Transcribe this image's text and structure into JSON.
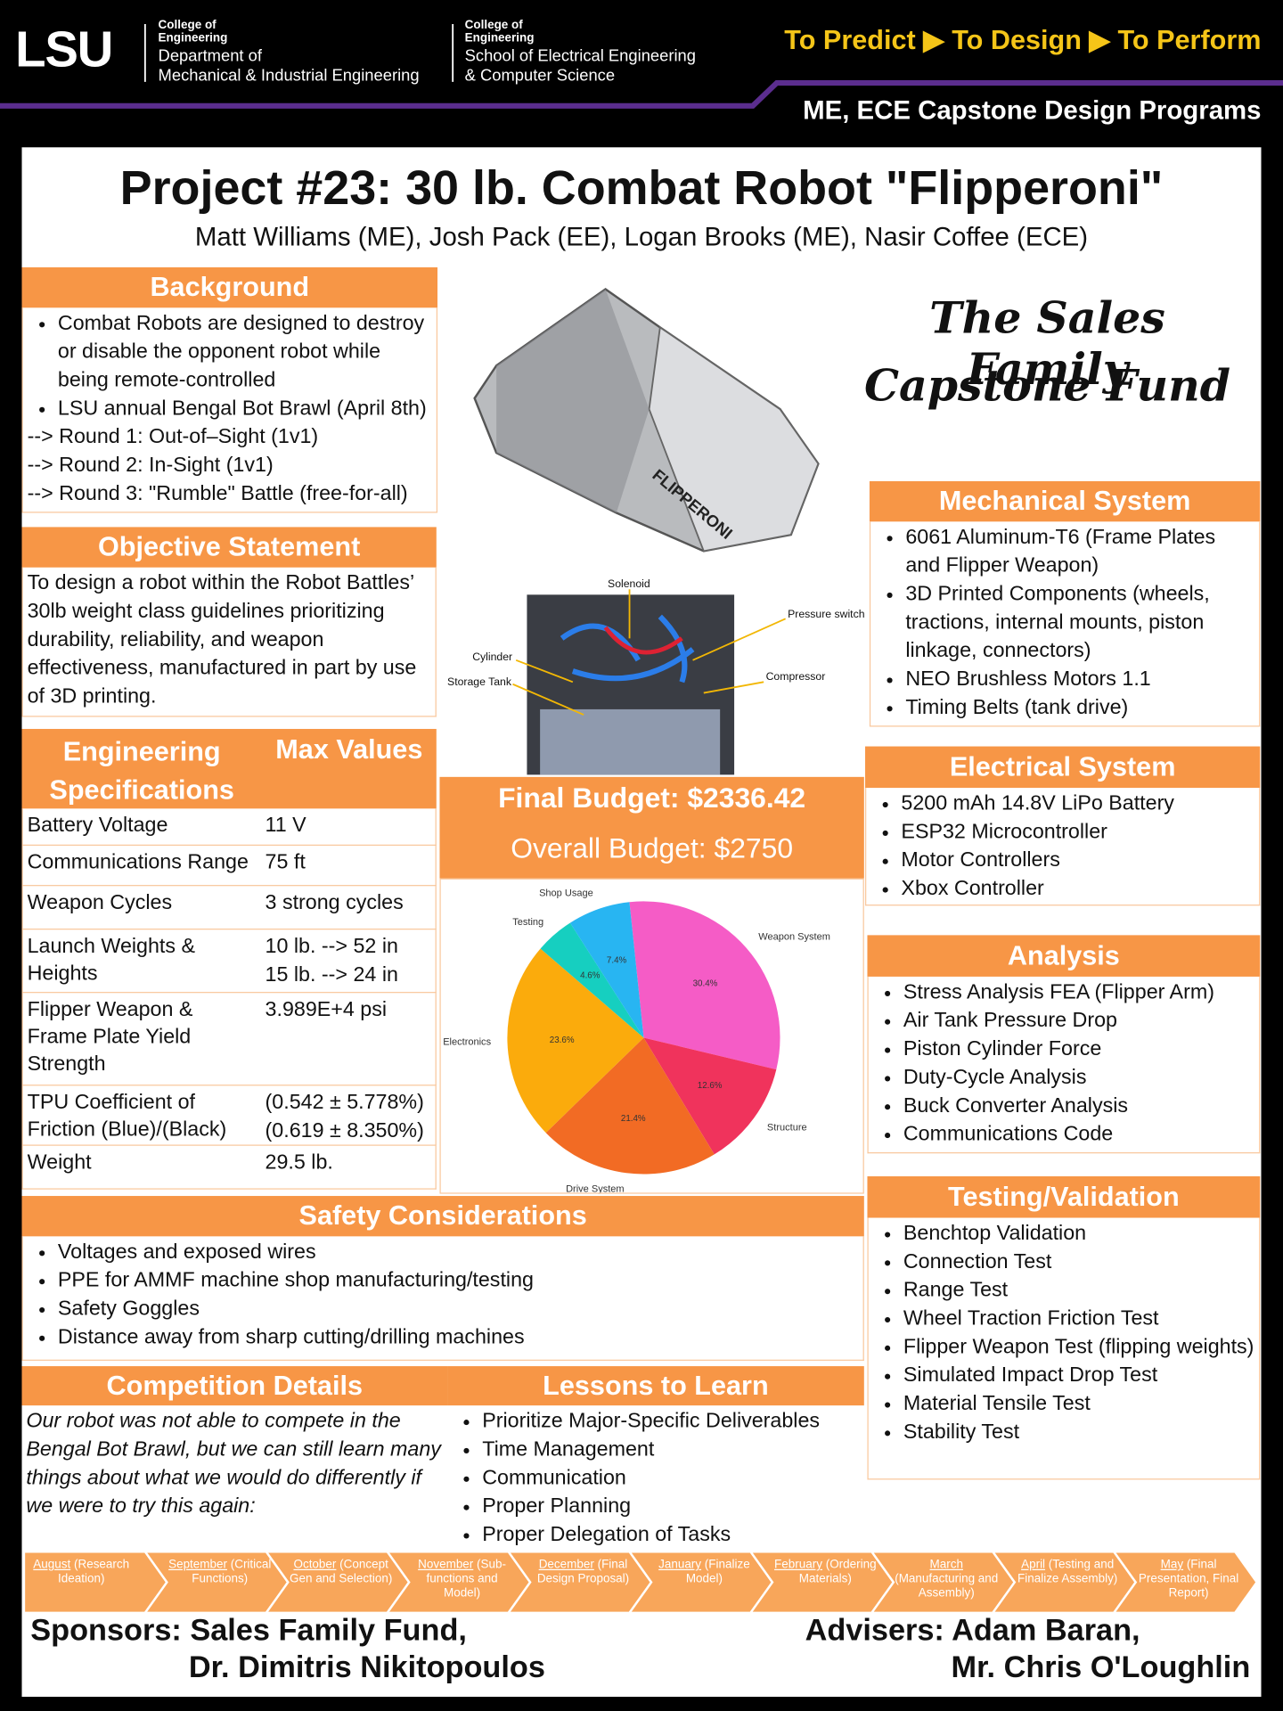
{
  "header": {
    "logo": "LSU",
    "college_me": [
      "College of",
      "Engineering"
    ],
    "dept_me": [
      "Department of",
      "Mechanical & Industrial Engineering"
    ],
    "college_ece": [
      "College of",
      "Engineering"
    ],
    "dept_ece": [
      "School of Electrical Engineering",
      "& Computer Science"
    ],
    "tagline": "To Predict ▶ To Design ▶ To Perform",
    "programs": "ME, ECE Capstone Design Programs"
  },
  "title": "Project #23: 30 lb. Combat Robot \"Flipperoni\"",
  "authors": "Matt Williams (ME), Josh Pack (EE), Logan Brooks (ME), Nasir Coffee (ECE)",
  "background": {
    "heading": "Background",
    "bullets": [
      "Combat Robots are designed to destroy or disable the opponent robot while being remote-controlled",
      "LSU annual Bengal Bot Brawl (April 8th)"
    ],
    "rounds": [
      "--> Round 1: Out-of–Sight (1v1)",
      "--> Round 2: In-Sight (1v1)",
      "--> Round 3: \"Rumble\" Battle (free-for-all)"
    ]
  },
  "objective": {
    "heading": "Objective Statement",
    "text": "To design a robot within the Robot Battles’ 30lb weight class guidelines prioritizing durability, reliability, and weapon effectiveness, manufactured in part by use of 3D printing."
  },
  "specs": {
    "headers": [
      "Engineering Specifications",
      "Max Values"
    ],
    "rows": [
      {
        "label": "Battery Voltage",
        "value": [
          "11 V"
        ]
      },
      {
        "label": "Communications Range",
        "value": [
          "75 ft"
        ]
      },
      {
        "label": "Weapon Cycles",
        "value": [
          "3 strong cycles"
        ]
      },
      {
        "label": "Launch Weights & Heights",
        "value": [
          "10 lb. --> 52 in",
          "15 lb. --> 24 in"
        ]
      },
      {
        "label": "Flipper Weapon & Frame Plate Yield Strength",
        "value": [
          "3.989E+4 psi"
        ]
      },
      {
        "label": "TPU Coefficient of Friction (Blue)/(Black)",
        "value": [
          "(0.542 ± 5.778%)",
          "(0.619 ± 8.350%)"
        ]
      },
      {
        "label": "Weight",
        "value": [
          "29.5 lb."
        ]
      }
    ]
  },
  "safety": {
    "heading": "Safety Considerations",
    "bullets": [
      "Voltages and exposed wires",
      "PPE for AMMF machine shop manufacturing/testing",
      "Safety Goggles",
      "Distance away from sharp cutting/drilling machines"
    ]
  },
  "competition": {
    "heading": "Competition Details",
    "text": "Our robot was not able to compete in the Bengal Bot Brawl, but we can still learn many things about what we would do differently if we were to try this again:"
  },
  "lessons": {
    "heading": "Lessons to Learn",
    "bullets": [
      "Prioritize Major-Specific Deliverables",
      "Time Management",
      "Communication",
      "Proper Planning",
      "Proper Delegation of Tasks"
    ]
  },
  "robot_label": "FLIPPERONI",
  "photo_labels": [
    "Solenoid",
    "Pressure switch",
    "Cylinder",
    "Storage Tank",
    "Compressor"
  ],
  "fund": [
    "The Sales Family",
    "Capstone Fund"
  ],
  "mechanical": {
    "heading": "Mechanical System",
    "bullets": [
      "6061 Aluminum-T6 (Frame Plates and Flipper Weapon)",
      "3D Printed Components (wheels, tractions, internal mounts, piston linkage, connectors)",
      "NEO Brushless Motors 1.1",
      "Timing Belts (tank drive)"
    ]
  },
  "electrical": {
    "heading": "Electrical System",
    "bullets": [
      "5200 mAh 14.8V LiPo Battery",
      "ESP32 Microcontroller",
      "Motor Controllers",
      "Xbox Controller"
    ]
  },
  "analysis": {
    "heading": "Analysis",
    "bullets": [
      "Stress Analysis FEA (Flipper Arm)",
      "Air Tank Pressure Drop",
      "Piston Cylinder Force",
      "Duty-Cycle Analysis",
      "Buck Converter Analysis",
      "Communications Code"
    ]
  },
  "testing": {
    "heading": "Testing/Validation",
    "bullets": [
      "Benchtop Validation",
      "Connection Test",
      "Range Test",
      "Wheel Traction Friction Test",
      "Flipper Weapon Test (flipping weights)",
      "Simulated Impact Drop Test",
      "Material Tensile Test",
      "Stability Test"
    ]
  },
  "budget": {
    "final": "Final Budget: $2336.42",
    "overall": "Overall Budget: $2750"
  },
  "chart_data": {
    "type": "pie",
    "categories": [
      "Weapon System",
      "Structure",
      "Drive System",
      "Electronics",
      "Testing",
      "Shop Usage"
    ],
    "values": [
      30.4,
      12.6,
      21.4,
      23.6,
      4.6,
      7.4
    ],
    "value_labels": [
      "30.4%",
      "12.6%",
      "21.4%",
      "23.6%",
      "4.6%",
      "7.4%"
    ],
    "colors": [
      "#f55cc6",
      "#f0335c",
      "#f26b24",
      "#fbab0c",
      "#16cfc0",
      "#28b5f2"
    ]
  },
  "timeline": [
    {
      "month": "August",
      "detail": "(Research Ideation)"
    },
    {
      "month": "September",
      "detail": "(Critical Functions)"
    },
    {
      "month": "October",
      "detail": "(Concept Gen and Selection)"
    },
    {
      "month": "November",
      "detail": "(Sub-functions and Model)"
    },
    {
      "month": "December",
      "detail": "(Final Design Proposal)"
    },
    {
      "month": "January",
      "detail": "(Finalize Model)"
    },
    {
      "month": "February",
      "detail": "(Ordering Materials)"
    },
    {
      "month": "March",
      "detail": "(Manufacturing and Assembly)"
    },
    {
      "month": "April",
      "detail": "(Testing and Finalize Assembly)"
    },
    {
      "month": "May",
      "detail": "(Final Presentation, Final Report)"
    }
  ],
  "sponsors": [
    "Sponsors: Sales Family Fund,",
    "Dr. Dimitris Nikitopoulos"
  ],
  "advisers": [
    "Advisers: Adam Baran,",
    "Mr. Chris O'Loughlin"
  ]
}
